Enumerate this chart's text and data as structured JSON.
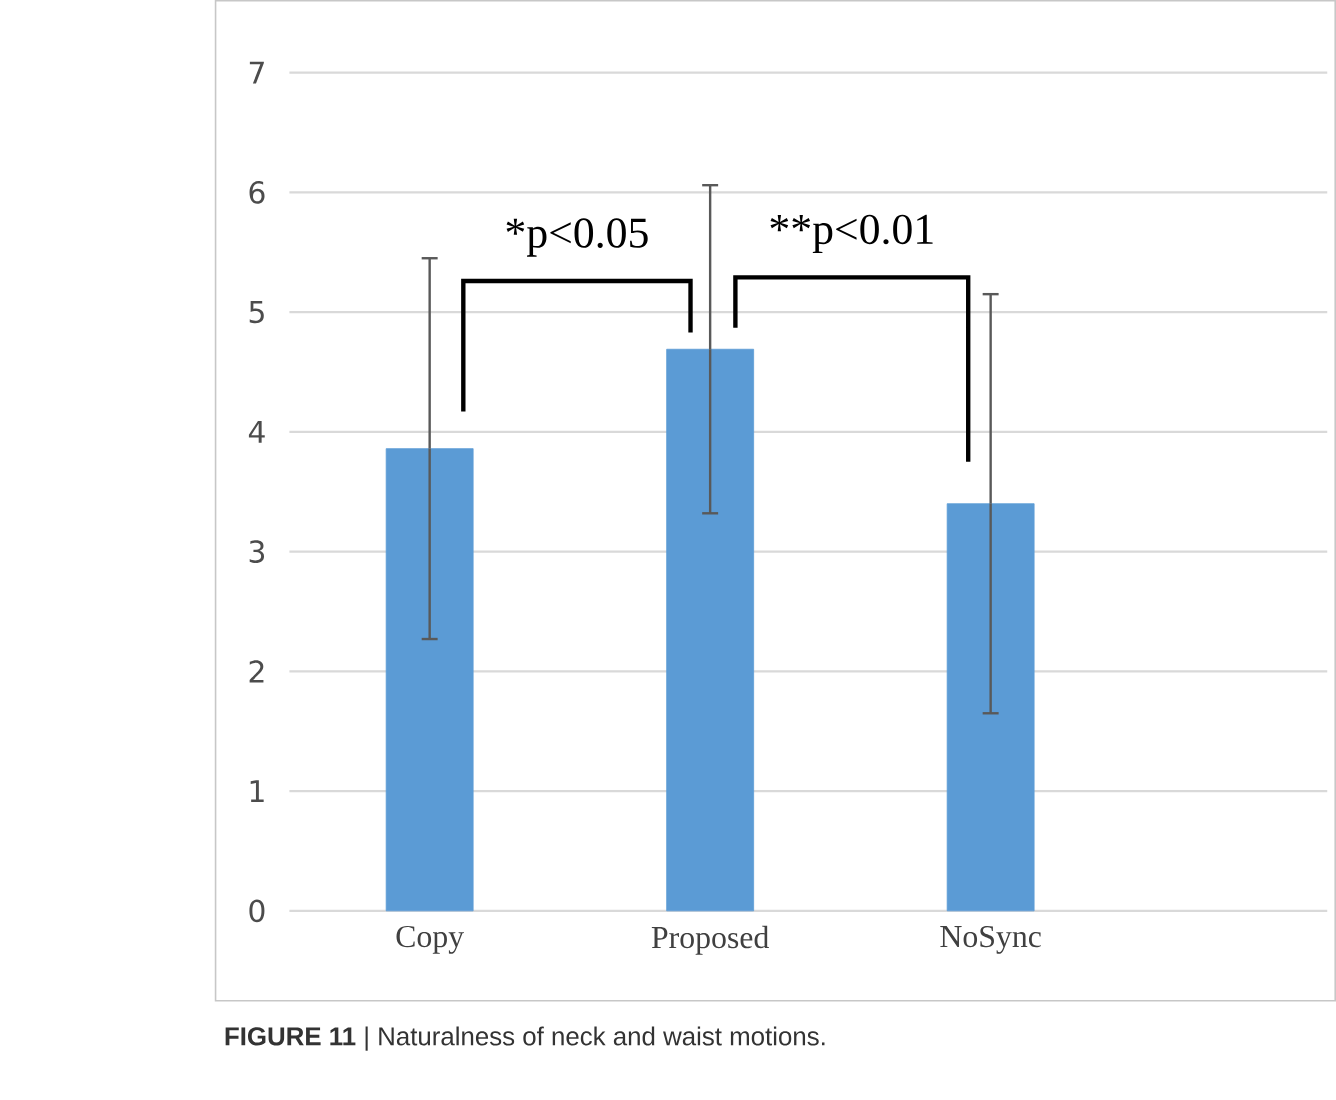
{
  "chart_data": {
    "type": "bar",
    "categories": [
      "Copy",
      "Proposed",
      "NoSync"
    ],
    "values": [
      3.86,
      4.69,
      3.4
    ],
    "errors": [
      1.59,
      1.37,
      1.75
    ],
    "color": "#5b9bd5",
    "ylim": [
      0,
      7
    ],
    "yticks": [
      0,
      1,
      2,
      3,
      4,
      5,
      6,
      7
    ],
    "grid": "y",
    "annotations": [
      "*p<0.05",
      "**p<0.01",
      "**FIGURE 11** | Naturalness of neck and waist motions."
    ]
  }
}
